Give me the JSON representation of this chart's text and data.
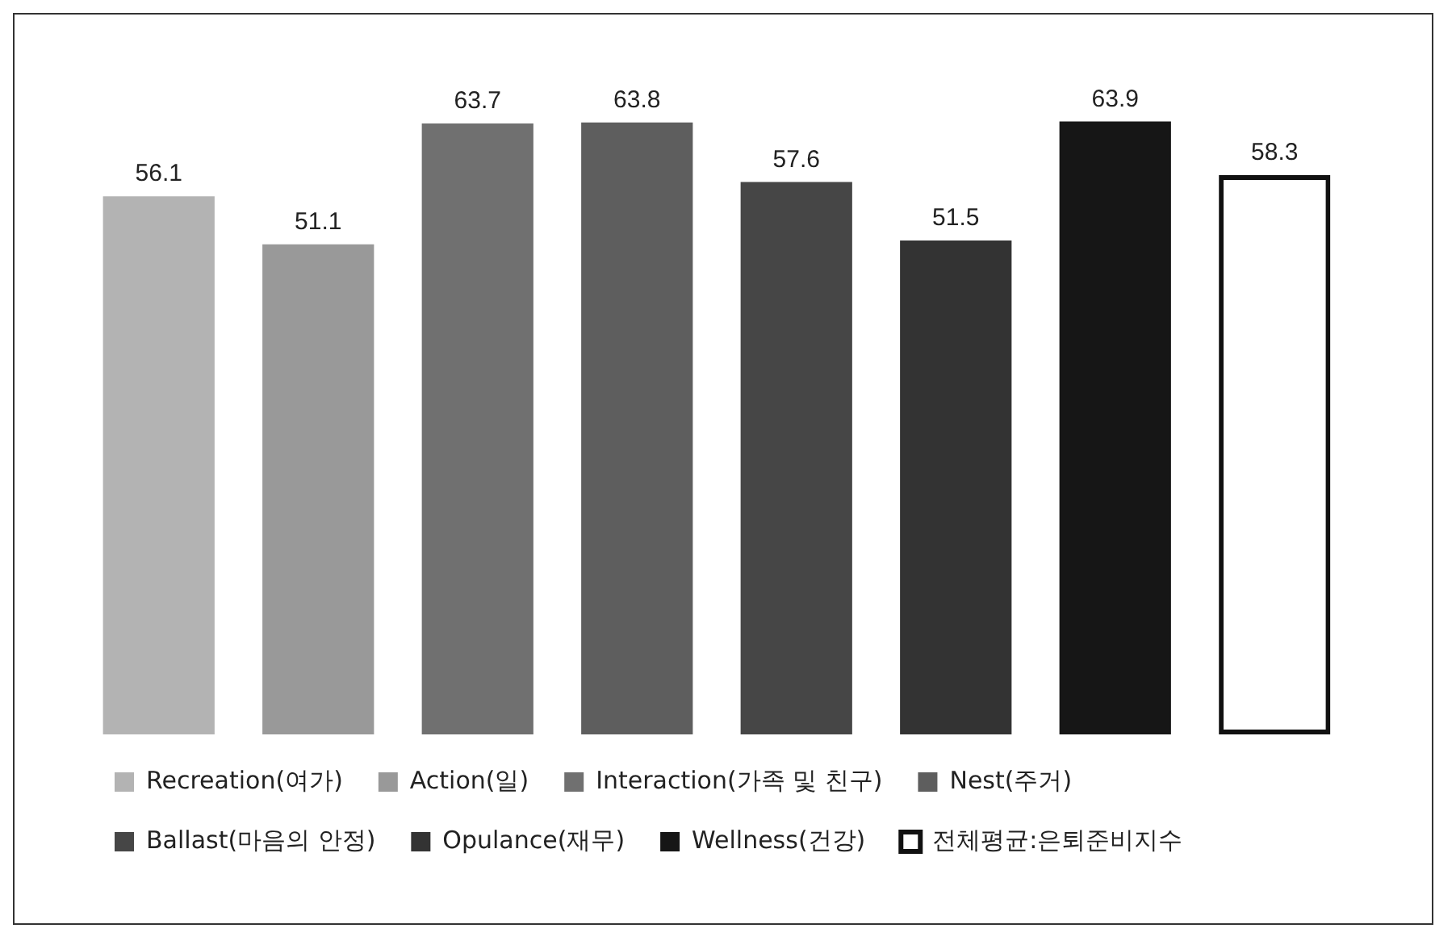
{
  "chart_data": {
    "type": "bar",
    "categories": [
      null,
      null,
      null,
      null,
      null,
      null,
      null,
      null
    ],
    "series": [
      {
        "name": "Recreation(여가)",
        "color": "#b3b3b3",
        "values": [
          56.1,
          null,
          null,
          null,
          null,
          null,
          null,
          null
        ]
      },
      {
        "name": "Action(일)",
        "color": "#999999",
        "values": [
          null,
          51.1,
          null,
          null,
          null,
          null,
          null,
          null
        ]
      },
      {
        "name": "Interaction(가족 및 친구)",
        "color": "#707070",
        "values": [
          null,
          null,
          63.7,
          null,
          null,
          null,
          null,
          null
        ]
      },
      {
        "name": "Nest(주거)",
        "color": "#5e5e5e",
        "values": [
          null,
          null,
          null,
          63.8,
          null,
          null,
          null,
          null
        ]
      },
      {
        "name": "Ballast(마음의 안정)",
        "color": "#464646",
        "values": [
          null,
          null,
          null,
          null,
          57.6,
          null,
          null,
          null
        ]
      },
      {
        "name": "Opulance(재무)",
        "color": "#333333",
        "values": [
          null,
          null,
          null,
          null,
          null,
          51.5,
          null,
          null
        ]
      },
      {
        "name": "Wellness(건강)",
        "color": "#161616",
        "values": [
          null,
          null,
          null,
          null,
          null,
          null,
          63.9,
          null
        ]
      },
      {
        "name": "전체평균:은퇴준비지수",
        "color": "#111111",
        "values": [
          null,
          null,
          null,
          null,
          null,
          null,
          null,
          58.3
        ]
      }
    ],
    "stacked": true,
    "tick_labels": false,
    "data_labels": true,
    "legend": "bottom"
  }
}
